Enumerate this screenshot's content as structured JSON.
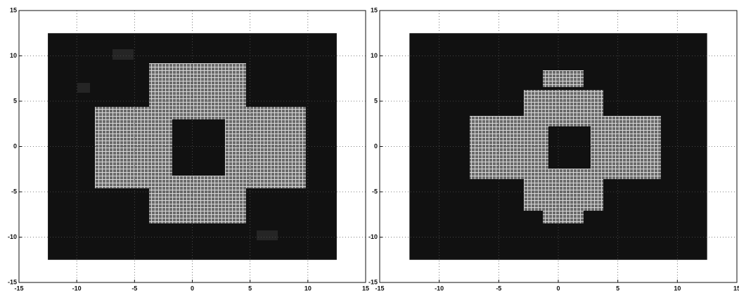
{
  "chart_data": [
    {
      "type": "image",
      "xlim": [
        -15,
        15
      ],
      "ylim": [
        -15,
        15
      ],
      "xticks": [
        -15,
        -10,
        -5,
        0,
        5,
        10,
        15
      ],
      "yticks": [
        -15,
        -10,
        -5,
        0,
        5,
        10,
        15
      ],
      "extent": [
        -12.5,
        12.5,
        -12.5,
        12.5
      ],
      "color": "#111111",
      "grid": true
    },
    {
      "type": "image",
      "xlim": [
        -15,
        15
      ],
      "ylim": [
        -15,
        15
      ],
      "xticks": [
        -15,
        -10,
        -5,
        0,
        5,
        10,
        15
      ],
      "yticks": [
        -15,
        -10,
        -5,
        0,
        5,
        10,
        15
      ],
      "extent": [
        -12.5,
        12.5,
        -12.5,
        12.5
      ],
      "color": "#111111",
      "grid": true
    }
  ]
}
